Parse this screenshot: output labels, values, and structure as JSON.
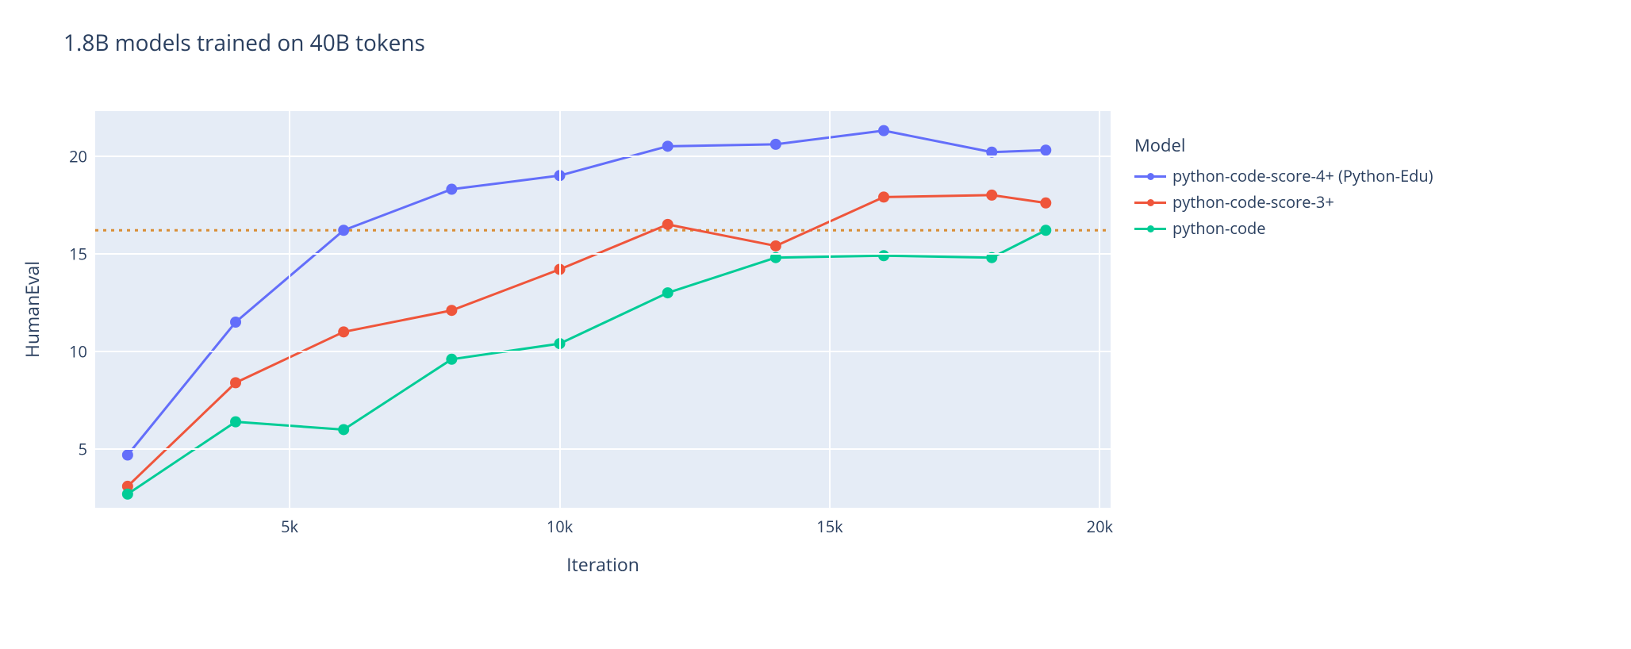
{
  "title": "1.8B models trained on 40B tokens",
  "xlabel": "Iteration",
  "ylabel": "HumanEval",
  "legend_title": "Model",
  "background_color": "#ffffff",
  "plot_bgcolor": "#e5ecf6",
  "grid_color": "#ffffff",
  "axis_text_color": "#2a3f5f",
  "title_fontsize": 28,
  "axis_label_fontsize": 23,
  "tick_fontsize": 20,
  "legend_fontsize": 20,
  "xlim": [
    1400,
    20200
  ],
  "ylim": [
    2.0,
    22.3
  ],
  "xticks": [
    {
      "value": 5000,
      "label": "5k"
    },
    {
      "value": 10000,
      "label": "10k"
    },
    {
      "value": 15000,
      "label": "15k"
    },
    {
      "value": 20000,
      "label": "20k"
    }
  ],
  "yticks": [
    {
      "value": 5,
      "label": "5"
    },
    {
      "value": 10,
      "label": "10"
    },
    {
      "value": 15,
      "label": "15"
    },
    {
      "value": 20,
      "label": "20"
    }
  ],
  "reference_line": {
    "value": 16.2,
    "color": "#d98e35",
    "dash": "4,6",
    "width": 3
  },
  "line_width": 3,
  "marker_radius": 7,
  "series": [
    {
      "name": "python-code-score-4+ (Python-Edu)",
      "color": "#636efa",
      "x": [
        2000,
        4000,
        6000,
        8000,
        10000,
        12000,
        14000,
        16000,
        18000,
        19000
      ],
      "y": [
        4.7,
        11.5,
        16.2,
        18.3,
        19.0,
        20.5,
        20.6,
        21.3,
        20.2,
        20.3
      ]
    },
    {
      "name": "python-code-score-3+",
      "color": "#ef553b",
      "x": [
        2000,
        4000,
        6000,
        8000,
        10000,
        12000,
        14000,
        16000,
        18000,
        19000
      ],
      "y": [
        3.1,
        8.4,
        11.0,
        12.1,
        14.2,
        16.5,
        15.4,
        17.9,
        18.0,
        17.6
      ]
    },
    {
      "name": "python-code",
      "color": "#00cc96",
      "x": [
        2000,
        4000,
        6000,
        8000,
        10000,
        12000,
        14000,
        16000,
        18000,
        19000
      ],
      "y": [
        2.7,
        6.4,
        6.0,
        9.6,
        10.4,
        13.0,
        14.8,
        14.9,
        14.8,
        16.2
      ]
    }
  ]
}
